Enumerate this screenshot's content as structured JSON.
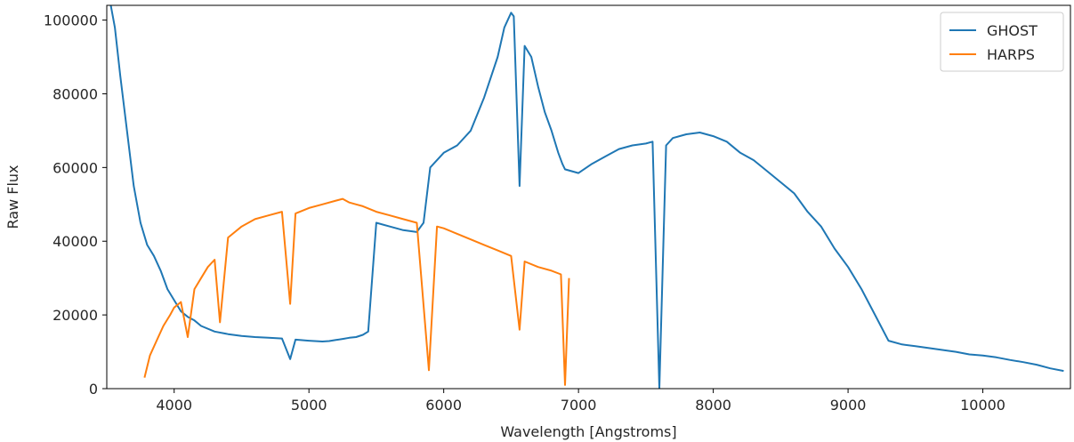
{
  "chart_data": {
    "type": "line",
    "title": "",
    "xlabel": "Wavelength [Angstroms]",
    "ylabel": "Raw Flux",
    "xlim": [
      3500,
      10650
    ],
    "ylim": [
      0,
      104000
    ],
    "xticks": [
      4000,
      5000,
      6000,
      7000,
      8000,
      9000,
      10000
    ],
    "yticks": [
      0,
      20000,
      40000,
      60000,
      80000,
      100000
    ],
    "grid": false,
    "legend_position": "top-right",
    "series": [
      {
        "name": "GHOST",
        "color": "#1f77b4",
        "x": [
          3530,
          3560,
          3600,
          3650,
          3700,
          3750,
          3800,
          3850,
          3900,
          3950,
          4000,
          4050,
          4100,
          4150,
          4200,
          4300,
          4400,
          4500,
          4600,
          4700,
          4800,
          4861,
          4900,
          5000,
          5100,
          5150,
          5200,
          5250,
          5300,
          5350,
          5400,
          5440,
          5500,
          5600,
          5700,
          5800,
          5850,
          5900,
          6000,
          6100,
          6200,
          6300,
          6400,
          6450,
          6500,
          6520,
          6563,
          6600,
          6650,
          6700,
          6750,
          6800,
          6850,
          6880,
          6900,
          7000,
          7100,
          7200,
          7300,
          7400,
          7500,
          7550,
          7600,
          7650,
          7700,
          7800,
          7900,
          8000,
          8100,
          8200,
          8300,
          8400,
          8500,
          8600,
          8700,
          8800,
          8900,
          9000,
          9100,
          9200,
          9300,
          9400,
          9500,
          9600,
          9700,
          9800,
          9900,
          10000,
          10100,
          10200,
          10300,
          10400,
          10500,
          10600
        ],
        "values": [
          104000,
          98000,
          85000,
          70000,
          55000,
          45000,
          39000,
          36000,
          32000,
          27000,
          24000,
          21000,
          19500,
          18500,
          17000,
          15500,
          14800,
          14300,
          14000,
          13800,
          13600,
          8000,
          13300,
          13000,
          12800,
          12900,
          13200,
          13500,
          13800,
          14000,
          14600,
          15500,
          45000,
          44000,
          43000,
          42500,
          45000,
          60000,
          64000,
          66000,
          70000,
          79000,
          90000,
          98000,
          102000,
          101000,
          55000,
          93000,
          90000,
          82000,
          75000,
          70000,
          64000,
          61000,
          59500,
          58500,
          61000,
          63000,
          65000,
          66000,
          66500,
          67000,
          0,
          66000,
          68000,
          69000,
          69500,
          68500,
          67000,
          64000,
          62000,
          59000,
          56000,
          53000,
          48000,
          44000,
          38000,
          33000,
          27000,
          20000,
          13000,
          12000,
          11500,
          11000,
          10500,
          10000,
          9300,
          9000,
          8500,
          7800,
          7200,
          6500,
          5500,
          4800
        ]
      },
      {
        "name": "HARPS",
        "color": "#ff7f0e",
        "x": [
          3780,
          3820,
          3870,
          3920,
          3970,
          4000,
          4050,
          4101,
          4150,
          4200,
          4250,
          4300,
          4340,
          4400,
          4500,
          4600,
          4700,
          4800,
          4861,
          4900,
          5000,
          5100,
          5200,
          5250,
          5300,
          5350,
          5400,
          5500,
          5600,
          5700,
          5800,
          5890,
          5950,
          6000,
          6100,
          6200,
          6300,
          6400,
          6500,
          6563,
          6600,
          6700,
          6800,
          6870,
          6900,
          6930
        ],
        "values": [
          3000,
          9000,
          13000,
          17000,
          20000,
          22000,
          23500,
          14000,
          27000,
          30000,
          33000,
          35000,
          18000,
          41000,
          44000,
          46000,
          47000,
          48000,
          23000,
          47500,
          49000,
          50000,
          51000,
          51500,
          50500,
          50000,
          49500,
          48000,
          47000,
          46000,
          45000,
          5000,
          44000,
          43500,
          42000,
          40500,
          39000,
          37500,
          36000,
          16000,
          34500,
          33000,
          32000,
          31000,
          1000,
          30000
        ]
      }
    ]
  }
}
